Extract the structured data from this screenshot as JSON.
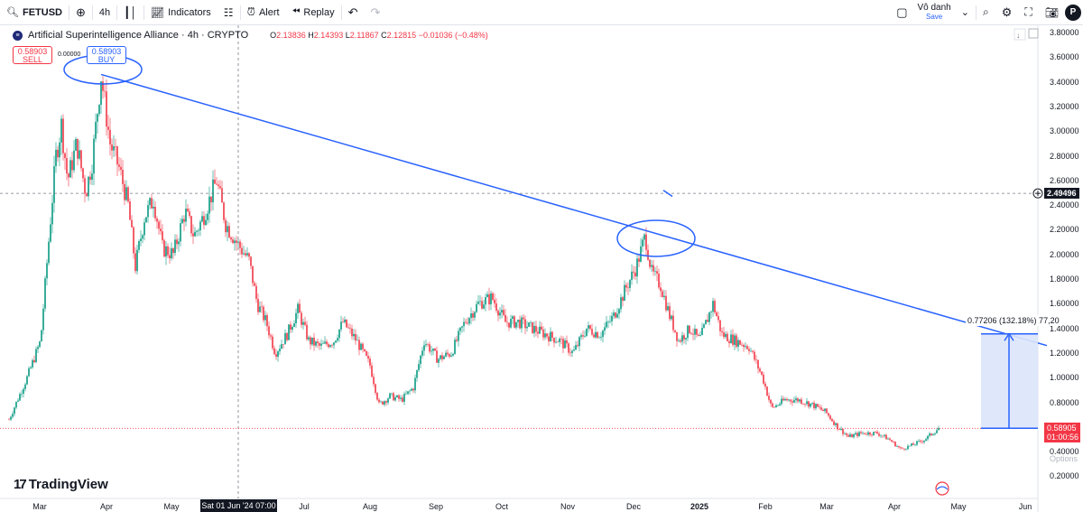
{
  "toolbar": {
    "symbol": "FETUSD",
    "interval": "4h",
    "indicators_label": "Indicators",
    "alert_label": "Alert",
    "replay_label": "Replay",
    "user_name": "Vô danh",
    "save_label": "Save",
    "avatar_letter": "P"
  },
  "legend": {
    "title": "Artificial Superintelligence Alliance · 4h · CRYPTO",
    "open": "O2.13836",
    "high": "H2.14393",
    "low": "L2.11867",
    "close": "C2.12815",
    "change": "−0.01036 (−0.48%)"
  },
  "trade": {
    "sell_price": "0.58903",
    "sell_label": "SELL",
    "spread": "0.00000",
    "buy_price": "0.58903",
    "buy_label": "BUY"
  },
  "price_axis": [
    "3.80000",
    "3.60000",
    "3.40000",
    "3.20000",
    "3.00000",
    "2.80000",
    "2.60000",
    "2.40000",
    "2.20000",
    "2.00000",
    "1.80000",
    "1.60000",
    "1.40000",
    "1.20000",
    "1.00000",
    "0.80000",
    "0.60000",
    "0.40000",
    "0.20000"
  ],
  "time_axis": [
    "Mar",
    "Apr",
    "May",
    "Jul",
    "Aug",
    "Sep",
    "Oct",
    "Nov",
    "Dec",
    "2025",
    "Feb",
    "Mar",
    "Apr",
    "May",
    "Jun"
  ],
  "crosshair": {
    "time_label": "Sat 01 Jun '24   07:00",
    "price_label": "2.49496"
  },
  "last_price": {
    "price": "0.58905",
    "countdown": "01:00:56"
  },
  "measure": {
    "label": "0.77206 (132.18%) 77,20"
  },
  "branding": {
    "logo_text": "TradingView",
    "options_text": "Options"
  },
  "colors": {
    "trend_line": "#2962ff",
    "up_candle": "#089981",
    "down_candle": "#f23645",
    "measure_fill": "#dbe5fb"
  },
  "chart_data": {
    "type": "candlestick",
    "symbol": "FETUSD",
    "ylim": [
      0.2,
      3.8
    ],
    "x_labels": [
      "Mar",
      "Apr",
      "May",
      "Jun",
      "Jul",
      "Aug",
      "Sep",
      "Oct",
      "Nov",
      "Dec",
      "2025",
      "Feb",
      "Mar",
      "Apr",
      "May",
      "Jun"
    ],
    "close_path": [
      [
        "Feb-end",
        0.66
      ],
      [
        "Mar-mid",
        1.8
      ],
      [
        "Mar-mid",
        3.0
      ],
      [
        "Mar-end",
        2.6
      ],
      [
        "Apr-start",
        3.45
      ],
      [
        "Apr-mid",
        2.75
      ],
      [
        "Apr-end",
        2.3
      ],
      [
        "May",
        2.2
      ],
      [
        "May-mid",
        2.35
      ],
      [
        "May-end",
        2.1
      ],
      [
        "Jun-start",
        2.5
      ],
      [
        "Jun-mid",
        2.2
      ],
      [
        "Jun-end",
        1.6
      ],
      [
        "Jul-start",
        1.25
      ],
      [
        "Jul-mid",
        1.45
      ],
      [
        "Jul-end",
        1.3
      ],
      [
        "Aug-start",
        0.75
      ],
      [
        "Aug-mid",
        0.85
      ],
      [
        "Sep-start",
        1.3
      ],
      [
        "Sep-mid",
        1.25
      ],
      [
        "Sep-end",
        1.7
      ],
      [
        "Oct-mid",
        1.45
      ],
      [
        "Nov-start",
        1.25
      ],
      [
        "Nov-mid",
        1.5
      ],
      [
        "Dec-start",
        2.1
      ],
      [
        "Dec-mid",
        1.65
      ],
      [
        "Dec-end",
        1.35
      ],
      [
        "Jan-mid",
        1.55
      ],
      [
        "Jan-end",
        1.3
      ],
      [
        "Feb-start",
        0.85
      ],
      [
        "Feb-mid",
        0.78
      ],
      [
        "Mar-start",
        0.55
      ],
      [
        "Mar-mid",
        0.58
      ],
      [
        "Apr-start",
        0.45
      ],
      [
        "Apr-end",
        0.59
      ]
    ]
  }
}
